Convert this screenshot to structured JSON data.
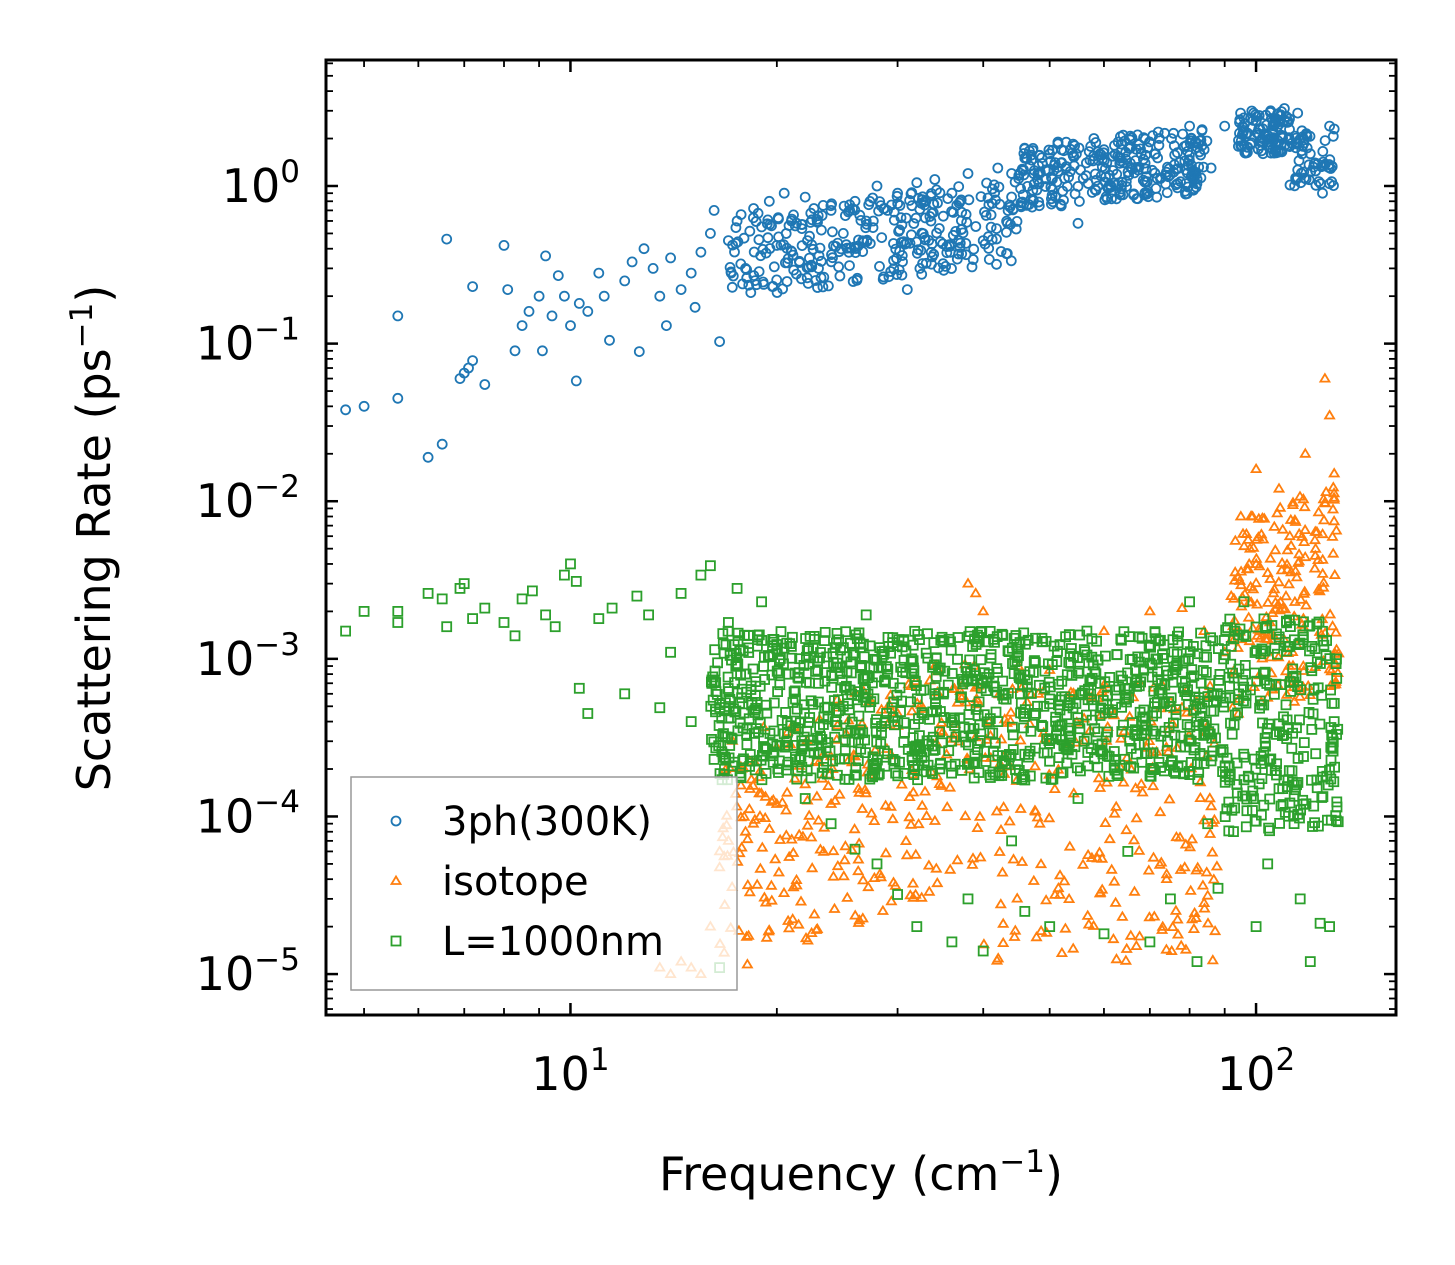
{
  "chart_data": {
    "type": "scatter",
    "title": "",
    "xlabel": {
      "text": "Frequency (cm",
      "sup": "−1",
      "suffix": ")"
    },
    "ylabel": {
      "text": "Scattering Rate (ps",
      "sup": "−1",
      "suffix": ")"
    },
    "xscale": "log",
    "yscale": "log",
    "xlim": [
      4.4,
      160
    ],
    "ylim": [
      5.5e-06,
      6.3
    ],
    "x_ticks": [
      {
        "value": 10,
        "base": "10",
        "exp": "1"
      },
      {
        "value": 100,
        "base": "10",
        "exp": "2"
      }
    ],
    "y_ticks": [
      {
        "value": 1,
        "base": "10",
        "exp": "0"
      },
      {
        "value": 0.1,
        "base": "10",
        "exp": "−1"
      },
      {
        "value": 0.01,
        "base": "10",
        "exp": "−2"
      },
      {
        "value": 0.001,
        "base": "10",
        "exp": "−3"
      },
      {
        "value": 0.0001,
        "base": "10",
        "exp": "−4"
      },
      {
        "value": 1e-05,
        "base": "10",
        "exp": "−5"
      }
    ],
    "legend_position": "bottom-left",
    "series": [
      {
        "name": "3ph(300K)",
        "marker": "circle",
        "color": "#1f77b4",
        "points": [
          [
            4.7,
            0.038
          ],
          [
            5.0,
            0.04
          ],
          [
            5.6,
            0.045
          ],
          [
            5.6,
            0.15
          ],
          [
            6.2,
            0.019
          ],
          [
            6.5,
            0.023
          ],
          [
            6.6,
            0.46
          ],
          [
            6.9,
            0.06
          ],
          [
            7.0,
            0.065
          ],
          [
            7.1,
            0.07
          ],
          [
            7.2,
            0.078
          ],
          [
            7.2,
            0.23
          ],
          [
            7.5,
            0.055
          ],
          [
            8.0,
            0.42
          ],
          [
            8.1,
            0.22
          ],
          [
            8.3,
            0.09
          ],
          [
            8.5,
            0.13
          ],
          [
            8.7,
            0.16
          ],
          [
            9.0,
            0.2
          ],
          [
            9.1,
            0.09
          ],
          [
            9.2,
            0.36
          ],
          [
            9.4,
            0.15
          ],
          [
            9.6,
            0.27
          ],
          [
            9.8,
            0.2
          ],
          [
            10.0,
            0.13
          ],
          [
            10.2,
            0.058
          ],
          [
            10.3,
            0.18
          ],
          [
            10.6,
            0.16
          ],
          [
            11.0,
            0.28
          ],
          [
            11.2,
            0.2
          ],
          [
            11.4,
            0.105
          ],
          [
            12.0,
            0.25
          ],
          [
            12.3,
            0.33
          ],
          [
            12.6,
            0.089
          ],
          [
            12.8,
            0.4
          ],
          [
            13.2,
            0.3
          ],
          [
            13.5,
            0.2
          ],
          [
            13.8,
            0.13
          ],
          [
            14.0,
            0.35
          ],
          [
            14.5,
            0.22
          ],
          [
            15.0,
            0.28
          ],
          [
            15.2,
            0.17
          ],
          [
            15.5,
            0.38
          ],
          [
            16.0,
            0.5
          ],
          [
            16.2,
            0.7
          ],
          [
            16.5,
            0.103
          ],
          [
            17.0,
            0.45
          ],
          [
            17.5,
            0.6
          ],
          [
            18.0,
            0.3
          ],
          [
            18.5,
            0.72
          ],
          [
            19.0,
            0.55
          ],
          [
            19.5,
            0.8
          ],
          [
            20.0,
            0.42
          ],
          [
            20.5,
            0.9
          ],
          [
            21.0,
            0.6
          ],
          [
            22.0,
            0.85
          ],
          [
            23.0,
            0.3
          ],
          [
            24.0,
            0.7
          ],
          [
            25.0,
            0.5
          ],
          [
            26.0,
            0.8
          ],
          [
            27.0,
            0.6
          ],
          [
            28.0,
            1.0
          ],
          [
            29.0,
            0.7
          ],
          [
            30.0,
            0.9
          ],
          [
            31.0,
            0.22
          ],
          [
            32.0,
            1.05
          ],
          [
            33.0,
            0.8
          ],
          [
            34.0,
            1.1
          ],
          [
            36.0,
            0.9
          ],
          [
            38.0,
            1.2
          ],
          [
            40.0,
            0.45
          ],
          [
            42.0,
            1.3
          ],
          [
            44.0,
            1.2
          ],
          [
            46.0,
            1.5
          ],
          [
            48.0,
            1.1
          ],
          [
            50.0,
            1.6
          ],
          [
            52.0,
            1.4
          ],
          [
            55.0,
            0.58
          ],
          [
            58.0,
            2.0
          ],
          [
            60.0,
            1.7
          ],
          [
            64.0,
            2.1
          ],
          [
            68.0,
            1.6
          ],
          [
            72.0,
            2.2
          ],
          [
            76.0,
            1.8
          ],
          [
            80.0,
            2.4
          ],
          [
            84.0,
            1.7
          ],
          [
            86.0,
            1.3
          ],
          [
            90.0,
            2.4
          ],
          [
            95.0,
            1.8
          ],
          [
            100.0,
            2.6
          ],
          [
            105.0,
            3.0
          ],
          [
            110.0,
            3.1
          ],
          [
            115.0,
            2.9
          ],
          [
            120.0,
            1.6
          ],
          [
            125.0,
            0.9
          ],
          [
            128.0,
            2.4
          ],
          [
            130.0,
            2.3
          ]
        ],
        "dense_bands": [
          {
            "x": [
              17,
              45
            ],
            "y": [
              0.25,
              0.85
            ],
            "slope": 0.55,
            "n": 320
          },
          {
            "x": [
              45,
              85
            ],
            "y": [
              0.8,
              2.1
            ],
            "slope": 0.4,
            "n": 300
          },
          {
            "x": [
              94,
              112
            ],
            "y": [
              1.6,
              3.0
            ],
            "slope": 0,
            "n": 110
          },
          {
            "x": [
              112,
              130
            ],
            "y": [
              1.0,
              2.3
            ],
            "slope": 0,
            "n": 60
          }
        ]
      },
      {
        "name": "isotope",
        "marker": "triangle",
        "color": "#ff7f0e",
        "points": [
          [
            13.5,
            1.1e-05
          ],
          [
            14.0,
            1e-05
          ],
          [
            14.5,
            1.2e-05
          ],
          [
            15.0,
            1.1e-05
          ],
          [
            15.5,
            1e-05
          ],
          [
            16.0,
            2e-05
          ],
          [
            16.5,
            6e-05
          ],
          [
            17.0,
            7e-05
          ],
          [
            18.0,
            8e-05
          ],
          [
            20.0,
            0.00012
          ],
          [
            22.0,
            0.00016
          ],
          [
            24.0,
            0.00012
          ],
          [
            26.0,
            0.00024
          ],
          [
            30.0,
            0.00045
          ],
          [
            34.0,
            0.0009
          ],
          [
            38.0,
            0.003
          ],
          [
            39.0,
            0.0026
          ],
          [
            40.0,
            0.002
          ],
          [
            45.0,
            0.0009
          ],
          [
            50.0,
            0.00085
          ],
          [
            60.0,
            0.0015
          ],
          [
            70.0,
            0.002
          ],
          [
            78.0,
            0.0021
          ],
          [
            84.0,
            0.0015
          ],
          [
            90.0,
            0.0011
          ],
          [
            92.0,
            0.0025
          ],
          [
            95.0,
            0.008
          ],
          [
            98.0,
            0.005
          ],
          [
            100.0,
            0.016
          ],
          [
            104.0,
            0.0035
          ],
          [
            108.0,
            0.012
          ],
          [
            112.0,
            0.006
          ],
          [
            118.0,
            0.02
          ],
          [
            122.0,
            0.0045
          ],
          [
            126.0,
            0.06
          ],
          [
            128.0,
            0.035
          ],
          [
            130.0,
            0.015
          ]
        ],
        "dense_bands": [
          {
            "x": [
              16.5,
              40
            ],
            "y": [
              2e-05,
              0.0006
            ],
            "slope": 1.6,
            "n": 260
          },
          {
            "x": [
              40,
              88
            ],
            "y": [
              1.2e-05,
              0.0007
            ],
            "slope": 0,
            "n": 220
          },
          {
            "x": [
              92,
              132
            ],
            "y": [
              0.0005,
              0.01
            ],
            "slope": 1.8,
            "n": 200
          }
        ]
      },
      {
        "name": "L=1000nm",
        "marker": "square",
        "color": "#2ca02c",
        "points": [
          [
            4.7,
            0.0015
          ],
          [
            5.0,
            0.002
          ],
          [
            5.6,
            0.0017
          ],
          [
            5.6,
            0.002
          ],
          [
            6.2,
            0.0026
          ],
          [
            6.5,
            0.0024
          ],
          [
            6.6,
            0.0016
          ],
          [
            6.9,
            0.0028
          ],
          [
            7.0,
            0.003
          ],
          [
            7.2,
            0.0018
          ],
          [
            7.5,
            0.0021
          ],
          [
            8.0,
            0.0017
          ],
          [
            8.3,
            0.0014
          ],
          [
            8.5,
            0.0024
          ],
          [
            8.8,
            0.0027
          ],
          [
            9.2,
            0.0019
          ],
          [
            9.5,
            0.0016
          ],
          [
            9.8,
            0.0034
          ],
          [
            10.0,
            0.004
          ],
          [
            10.2,
            0.0031
          ],
          [
            10.3,
            0.00065
          ],
          [
            10.6,
            0.00045
          ],
          [
            11.0,
            0.0018
          ],
          [
            11.5,
            0.0021
          ],
          [
            12.0,
            0.0006
          ],
          [
            12.5,
            0.0025
          ],
          [
            13.0,
            0.0019
          ],
          [
            13.5,
            0.00049
          ],
          [
            14.0,
            0.0011
          ],
          [
            14.5,
            0.0026
          ],
          [
            15.0,
            0.0004
          ],
          [
            15.5,
            0.0034
          ],
          [
            16.0,
            0.0039
          ],
          [
            16.2,
            0.00023
          ],
          [
            16.5,
            1.1e-05
          ],
          [
            17.0,
            0.0017
          ],
          [
            17.5,
            0.0028
          ],
          [
            18.0,
            0.0008
          ],
          [
            19.0,
            0.0023
          ],
          [
            20.0,
            0.00028
          ],
          [
            21.0,
            0.0012
          ],
          [
            22.0,
            0.00013
          ],
          [
            23.0,
            0.0007
          ],
          [
            24.0,
            9e-05
          ],
          [
            25.0,
            0.0005
          ],
          [
            26.0,
            6.2e-05
          ],
          [
            27.0,
            0.0019
          ],
          [
            28.0,
            5e-05
          ],
          [
            29.0,
            0.00025
          ],
          [
            30.0,
            3.2e-05
          ],
          [
            32.0,
            2e-05
          ],
          [
            34.0,
            0.0006
          ],
          [
            36.0,
            1.6e-05
          ],
          [
            38.0,
            3e-05
          ],
          [
            40.0,
            1.4e-05
          ],
          [
            42.0,
            0.0004
          ],
          [
            44.0,
            7e-05
          ],
          [
            46.0,
            2.5e-05
          ],
          [
            48.0,
            0.0005
          ],
          [
            50.0,
            2e-05
          ],
          [
            55.0,
            0.00013
          ],
          [
            60.0,
            1.8e-05
          ],
          [
            65.0,
            6e-05
          ],
          [
            70.0,
            1.6e-05
          ],
          [
            75.0,
            3e-05
          ],
          [
            80.0,
            0.0023
          ],
          [
            82.0,
            1.2e-05
          ],
          [
            85.0,
            9e-05
          ],
          [
            88.0,
            3.5e-05
          ],
          [
            92.0,
            0.0012
          ],
          [
            96.0,
            0.0023
          ],
          [
            100.0,
            2e-05
          ],
          [
            104.0,
            5e-05
          ],
          [
            108.0,
            0.00015
          ],
          [
            112.0,
            0.0012
          ],
          [
            116.0,
            3e-05
          ],
          [
            120.0,
            1.2e-05
          ],
          [
            124.0,
            2.1e-05
          ],
          [
            128.0,
            2e-05
          ],
          [
            130.0,
            0.0004
          ]
        ],
        "dense_bands": [
          {
            "x": [
              16,
              90
            ],
            "y": [
              0.00017,
              0.0015
            ],
            "slope": 0,
            "n": 1100
          },
          {
            "x": [
              90,
              132
            ],
            "y": [
              8e-05,
              0.0018
            ],
            "slope": 0,
            "n": 260
          }
        ]
      }
    ]
  }
}
